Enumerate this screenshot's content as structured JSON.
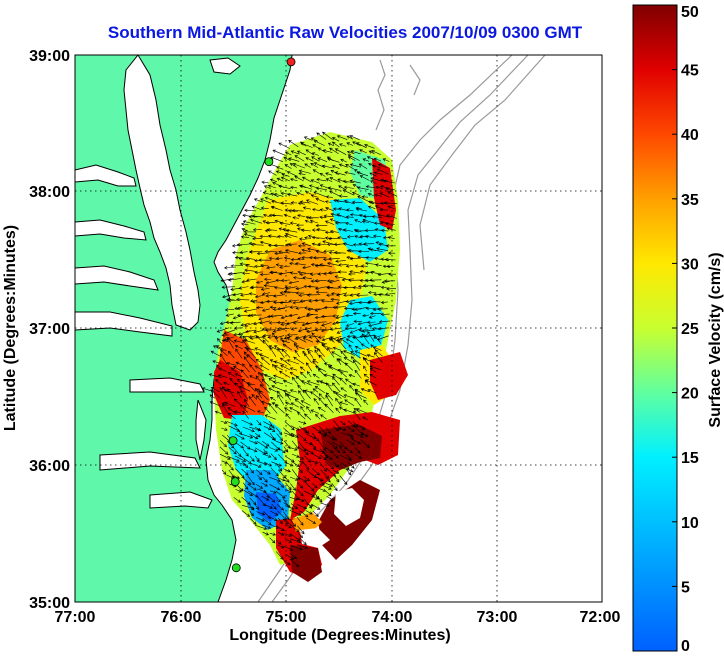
{
  "title": "Southern Mid-Atlantic Raw Velocities 2007/10/09 0300 GMT",
  "colors": {
    "land": "#5ff7a9",
    "ocean": "#ffffff",
    "coast": "#000000",
    "bathymetry": "#9a9a9a",
    "station_green": "#22dd22",
    "station_red": "#ee2222",
    "title": "#0a18e0"
  },
  "x_axis": {
    "label": "Longitude (Degrees:Minutes)",
    "ticks": [
      "77:00",
      "76:00",
      "75:00",
      "74:00",
      "73:00",
      "72:00"
    ]
  },
  "y_axis": {
    "label": "Latitude (Degrees:Minutes)",
    "ticks": [
      "39:00",
      "38:00",
      "37:00",
      "36:00",
      "35:00"
    ]
  },
  "colorbar": {
    "label": "Surface Velocity (cm/s)",
    "min": 0,
    "max": 50,
    "ticks": [
      "0",
      "5",
      "10",
      "15",
      "20",
      "25",
      "30",
      "35",
      "40",
      "45",
      "50"
    ]
  },
  "map_extent": {
    "lon": [
      -77.0,
      -72.0
    ],
    "lat": [
      35.0,
      39.0
    ]
  },
  "stations": [
    {
      "lon": -74.95,
      "lat": 38.95,
      "color": "red"
    },
    {
      "lon": -75.16,
      "lat": 38.22,
      "color": "green"
    },
    {
      "lon": -75.5,
      "lat": 36.18,
      "color": "green"
    },
    {
      "lon": -75.48,
      "lat": 35.88,
      "color": "green"
    },
    {
      "lon": -75.47,
      "lat": 35.25,
      "color": "green"
    }
  ]
}
